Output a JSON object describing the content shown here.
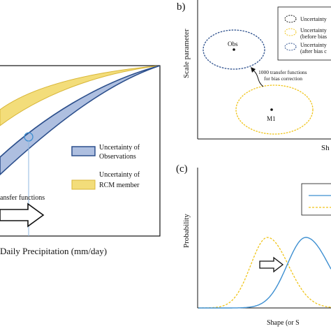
{
  "panel_a": {
    "legend": {
      "obs_line1": "Uncertainty of",
      "obs_line2": "Observations",
      "rcm_line1": "Uncertainty of",
      "rcm_line2": "RCM member",
      "obs_color": "#aebfe0",
      "obs_stroke": "#2c4f8c",
      "rcm_color": "#f3dd7a",
      "rcm_stroke": "#d8b638"
    },
    "transfer_label": "ansfer functions",
    "xlabel": "Daily Precipitation (mm/day)"
  },
  "panel_b": {
    "label": "b)",
    "ylabel": "Scale parameter",
    "xlabel": "Sh",
    "obs_label": "Obs",
    "m1_label": "M1",
    "arrow_label_line1": "1000 transfer functions",
    "arrow_label_line2": "for bias correction",
    "legend": {
      "item1_line1": "Uncertainty",
      "item2_line1": "Uncertainty",
      "item2_line2": "(before bias",
      "item3_line1": "Uncertainty",
      "item3_line2": "(after bias c"
    },
    "obs_color": "#2c4f8c",
    "m1_color": "#f0c419"
  },
  "panel_c": {
    "label": "(c)",
    "ylabel": "Probability",
    "xlabel": "Shape (or S",
    "blue_color": "#3d8fd1",
    "yellow_color": "#f0c419"
  }
}
